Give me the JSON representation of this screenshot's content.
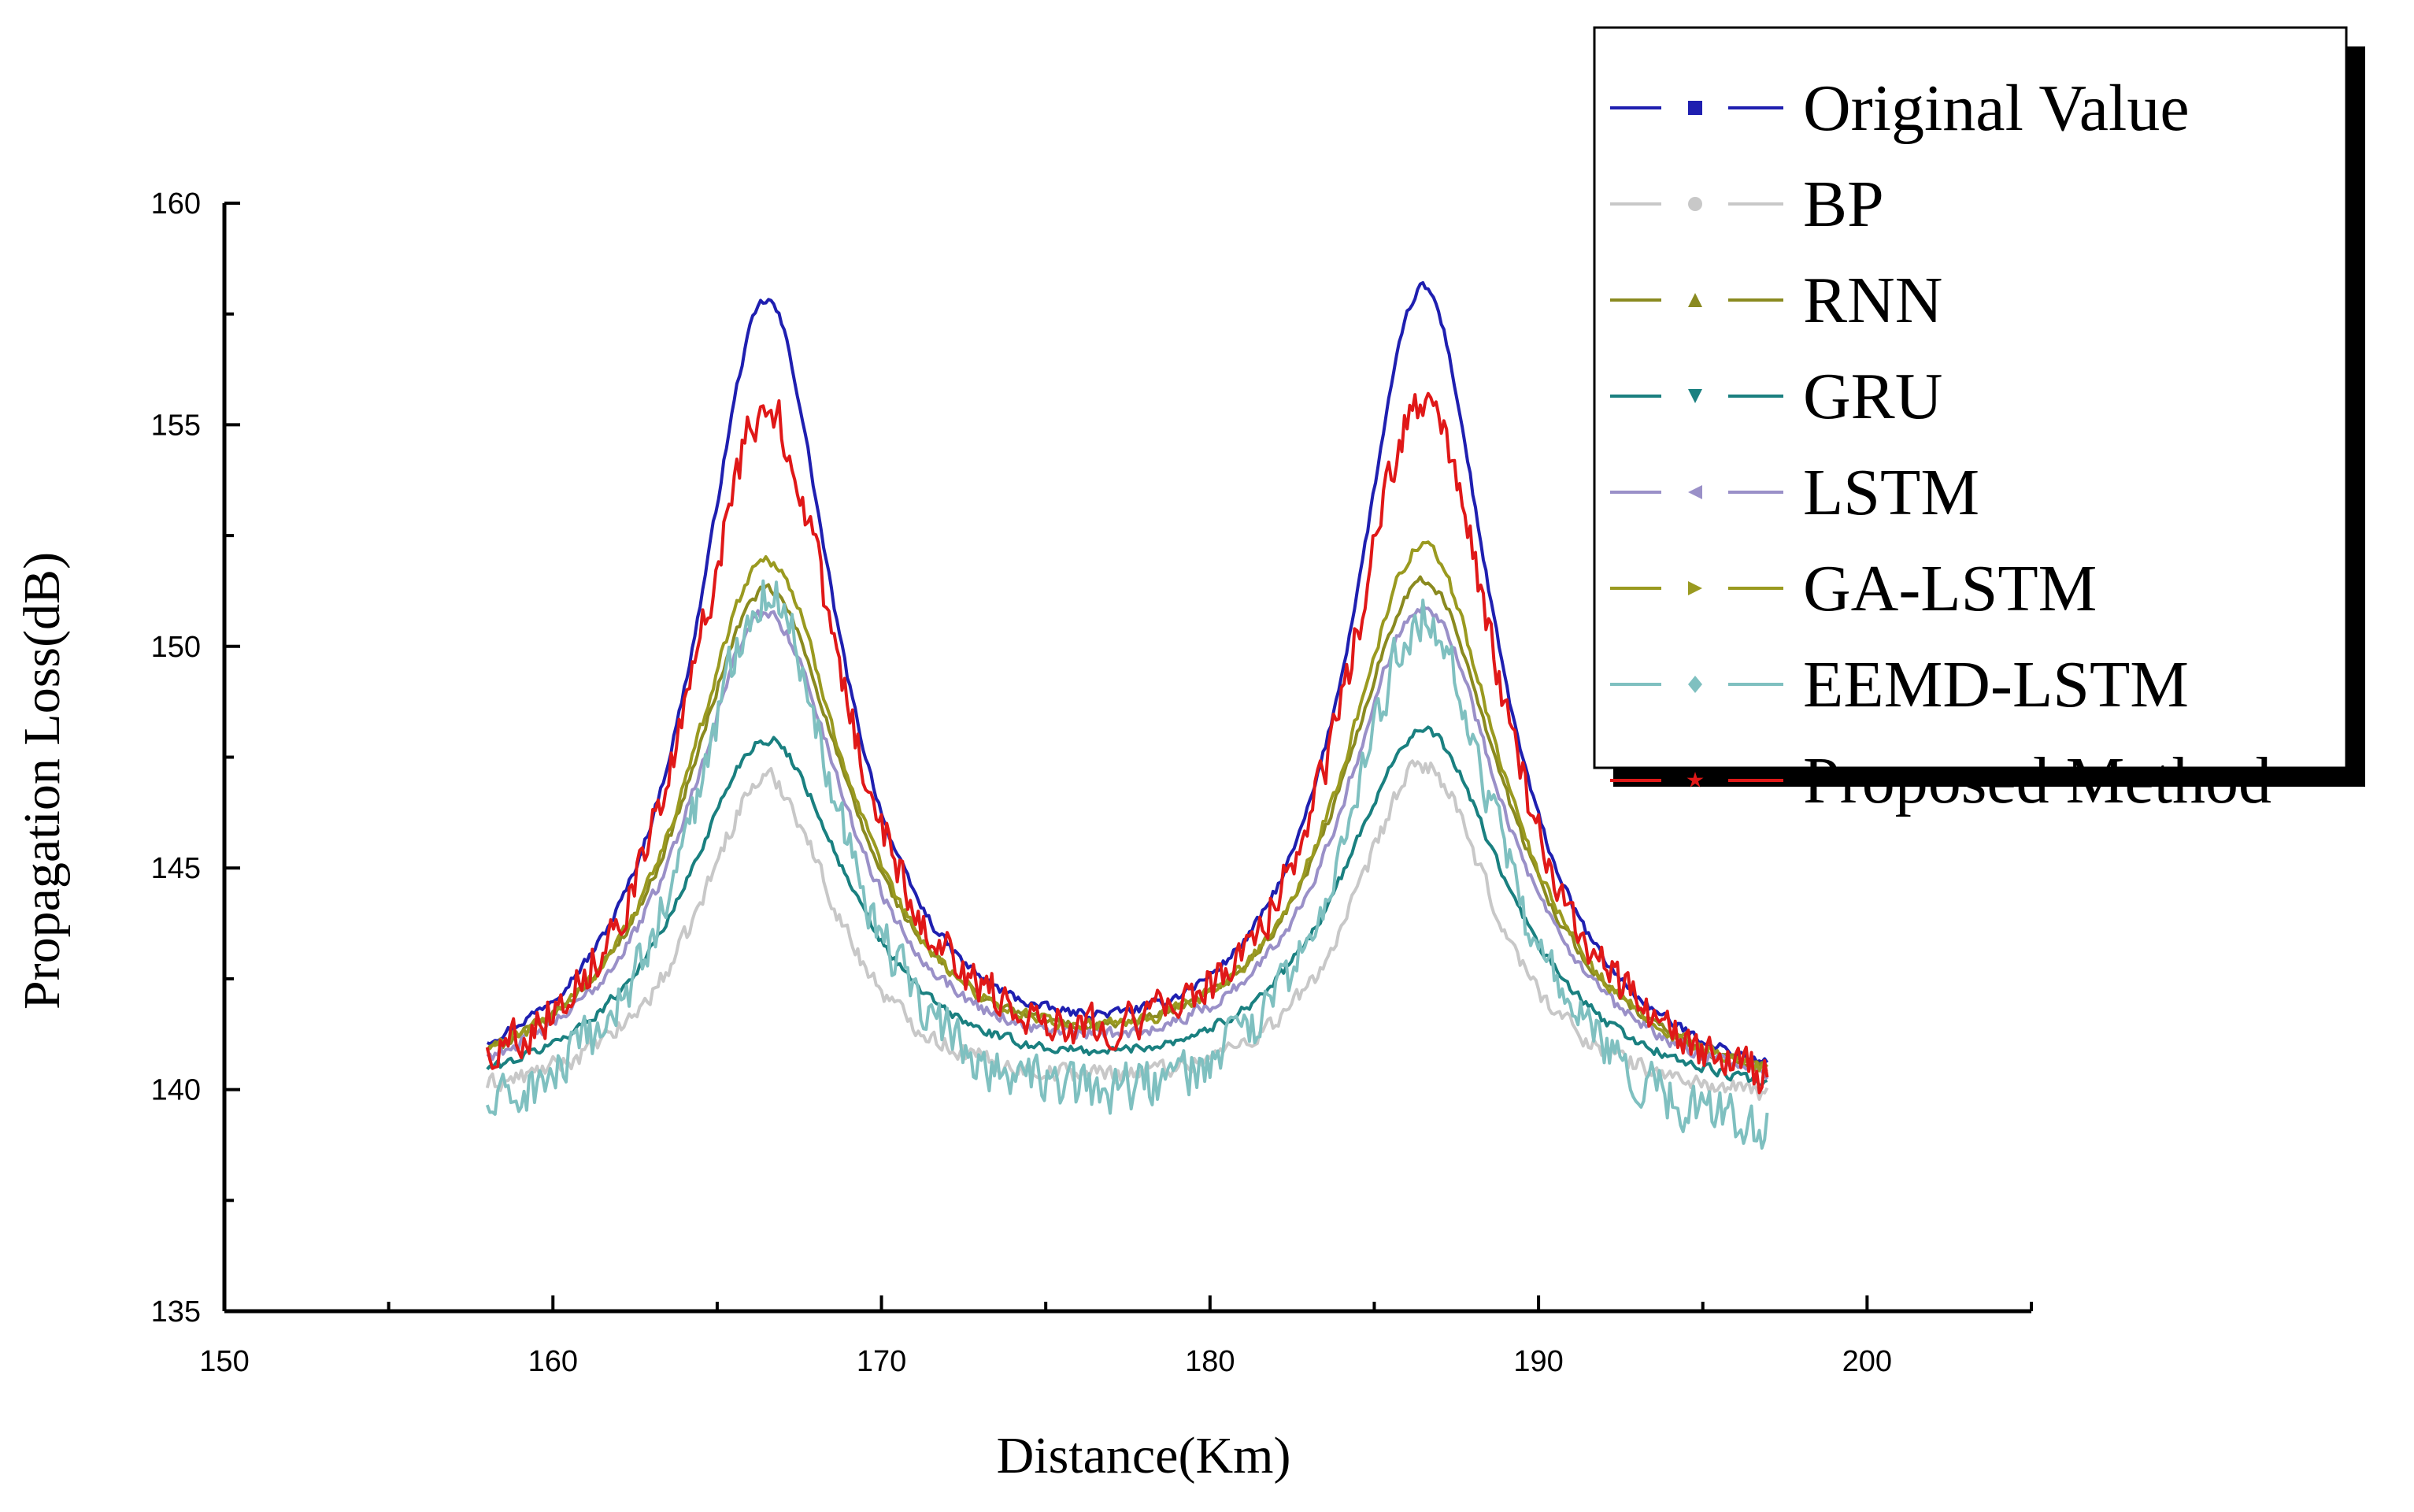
{
  "chart_data": {
    "type": "line",
    "title": "",
    "xlabel": "Distance(Km)",
    "ylabel": "Propagation Loss(dB)",
    "xlim": [
      150,
      205
    ],
    "ylim": [
      135,
      160
    ],
    "xticks": [
      150,
      160,
      170,
      180,
      190,
      200
    ],
    "yticks": [
      135,
      140,
      145,
      150,
      155,
      160
    ],
    "grid": false,
    "legend_position": "top-right",
    "x_range": [
      158,
      197
    ],
    "series": [
      {
        "name": "Original Value",
        "color": "#1f1fb0",
        "marker": "square",
        "base": 139.4,
        "peak1": 157.5,
        "peak2": 157.8,
        "width": 2.6,
        "min": 139.8,
        "noise": 0.15
      },
      {
        "name": "BP",
        "color": "#c8c8c8",
        "marker": "circle",
        "base": 139.4,
        "peak1": 146.9,
        "peak2": 147.2,
        "width": 2.6,
        "min": 139.4,
        "noise": 0.3
      },
      {
        "name": "RNN",
        "color": "#8a8a20",
        "marker": "triangle-up",
        "base": 139.4,
        "peak1": 151.0,
        "peak2": 151.2,
        "width": 3.1,
        "min": 139.7,
        "noise": 0.15
      },
      {
        "name": "GRU",
        "color": "#1a8080",
        "marker": "triangle-down",
        "base": 139.4,
        "peak1": 147.7,
        "peak2": 147.9,
        "width": 3.1,
        "min": 139.6,
        "noise": 0.15
      },
      {
        "name": "LSTM",
        "color": "#9a90c8",
        "marker": "triangle-left",
        "base": 139.4,
        "peak1": 150.5,
        "peak2": 150.7,
        "width": 3.0,
        "min": 139.6,
        "noise": 0.2
      },
      {
        "name": "GA-LSTM",
        "color": "#9a9a20",
        "marker": "triangle-right",
        "base": 139.4,
        "peak1": 151.7,
        "peak2": 152.0,
        "width": 3.0,
        "min": 139.7,
        "noise": 0.2
      },
      {
        "name": "EEMD-LSTM",
        "color": "#7fc0c0",
        "marker": "diamond",
        "base": 138.2,
        "peak1": 151.0,
        "peak2": 150.5,
        "width": 2.8,
        "min": 138.5,
        "noise": 0.8
      },
      {
        "name": "Proposed Method",
        "color": "#e01818",
        "marker": "star",
        "base": 139.0,
        "peak1": 155.0,
        "peak2": 155.2,
        "width": 2.9,
        "min": 139.3,
        "noise": 0.7
      }
    ],
    "peaks_x": [
      166.5,
      186.5
    ]
  }
}
